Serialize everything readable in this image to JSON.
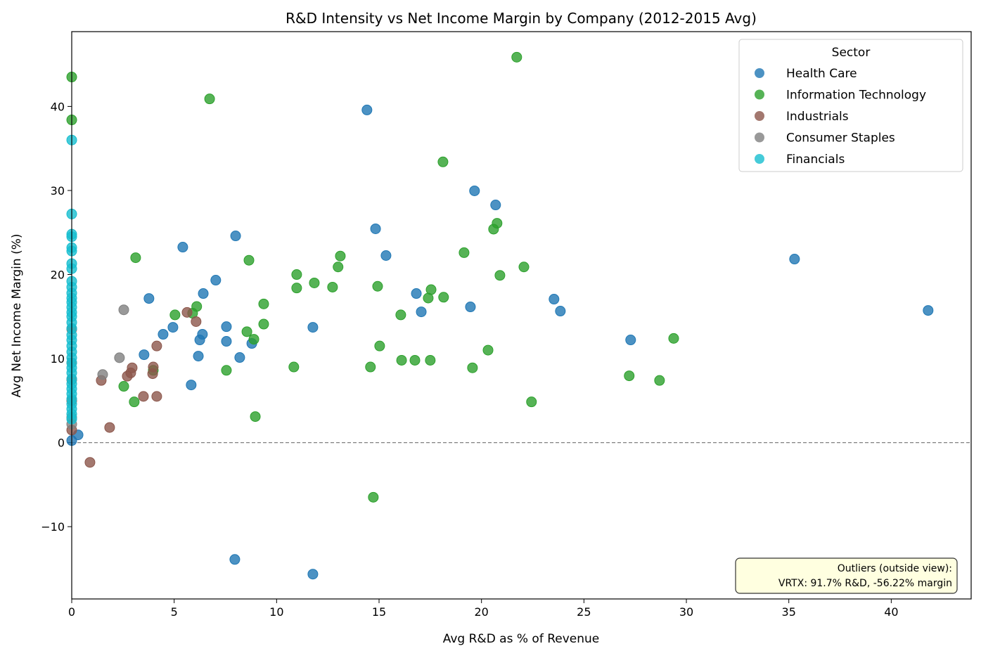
{
  "chart_data": {
    "type": "scatter",
    "title": "R&D Intensity vs Net Income Margin by Company (2012-2015 Avg)",
    "xlabel": "Avg R&D as % of Revenue",
    "ylabel": "Avg Net Income Margin (%)",
    "xlim": [
      0,
      43.9
    ],
    "ylim": [
      -18.6,
      48.9
    ],
    "xticks": [
      0,
      5,
      10,
      15,
      20,
      25,
      30,
      35,
      40
    ],
    "yticks": [
      -10,
      0,
      10,
      20,
      30,
      40
    ],
    "grid": false,
    "reference_line": {
      "y": 0,
      "style": "dashed",
      "color": "#808080"
    },
    "legend": {
      "title": "Sector",
      "placement": "top-right"
    },
    "annotation": {
      "lines": [
        "Outliers (outside view):",
        "VRTX: 91.7% R&D, -56.22% margin"
      ],
      "placement": "bottom-right",
      "background": "#ffffe0"
    },
    "series": [
      {
        "name": "Health Care",
        "color": "#1f77b4",
        "points": [
          [
            14.41,
            39.58
          ],
          [
            19.66,
            29.96
          ],
          [
            20.69,
            28.28
          ],
          [
            14.83,
            25.44
          ],
          [
            8.0,
            24.6
          ],
          [
            5.42,
            23.26
          ],
          [
            15.34,
            22.26
          ],
          [
            35.28,
            21.84
          ],
          [
            7.03,
            19.33
          ],
          [
            6.42,
            17.74
          ],
          [
            16.82,
            17.74
          ],
          [
            3.77,
            17.15
          ],
          [
            23.54,
            17.07
          ],
          [
            19.46,
            16.15
          ],
          [
            17.06,
            15.56
          ],
          [
            23.85,
            15.65
          ],
          [
            41.8,
            15.73
          ],
          [
            4.94,
            13.72
          ],
          [
            7.55,
            13.8
          ],
          [
            11.77,
            13.72
          ],
          [
            4.46,
            12.89
          ],
          [
            6.38,
            12.89
          ],
          [
            6.25,
            12.22
          ],
          [
            7.55,
            12.05
          ],
          [
            27.28,
            12.22
          ],
          [
            8.79,
            11.8
          ],
          [
            3.53,
            10.46
          ],
          [
            6.18,
            10.29
          ],
          [
            8.2,
            10.13
          ],
          [
            5.83,
            6.86
          ],
          [
            0.31,
            0.92
          ],
          [
            0,
            0.25
          ],
          [
            7.96,
            -13.9
          ],
          [
            11.77,
            -15.65
          ]
        ]
      },
      {
        "name": "Information Technology",
        "color": "#2ca02c",
        "points": [
          [
            0,
            43.5
          ],
          [
            0,
            38.4
          ],
          [
            21.72,
            45.86
          ],
          [
            6.73,
            40.9
          ],
          [
            18.12,
            33.4
          ],
          [
            20.76,
            26.1
          ],
          [
            20.59,
            25.4
          ],
          [
            3.12,
            22.0
          ],
          [
            19.15,
            22.6
          ],
          [
            13.11,
            22.2
          ],
          [
            8.65,
            21.7
          ],
          [
            13.0,
            20.9
          ],
          [
            22.07,
            20.9
          ],
          [
            10.98,
            20.0
          ],
          [
            20.9,
            19.9
          ],
          [
            11.84,
            19.0
          ],
          [
            10.98,
            18.4
          ],
          [
            12.73,
            18.5
          ],
          [
            14.93,
            18.6
          ],
          [
            17.54,
            18.2
          ],
          [
            17.4,
            17.2
          ],
          [
            18.15,
            17.3
          ],
          [
            9.37,
            16.5
          ],
          [
            6.1,
            16.2
          ],
          [
            5.04,
            15.2
          ],
          [
            5.9,
            15.4
          ],
          [
            16.06,
            15.2
          ],
          [
            9.37,
            14.1
          ],
          [
            8.55,
            13.2
          ],
          [
            8.89,
            12.3
          ],
          [
            29.38,
            12.4
          ],
          [
            15.03,
            11.5
          ],
          [
            20.32,
            11.0
          ],
          [
            10.84,
            9.0
          ],
          [
            14.58,
            9.0
          ],
          [
            16.1,
            9.8
          ],
          [
            16.75,
            9.8
          ],
          [
            17.5,
            9.8
          ],
          [
            19.56,
            8.9
          ],
          [
            7.55,
            8.6
          ],
          [
            3.98,
            8.6
          ],
          [
            27.21,
            7.95
          ],
          [
            28.69,
            7.4
          ],
          [
            2.54,
            6.7
          ],
          [
            3.05,
            4.85
          ],
          [
            22.44,
            4.85
          ],
          [
            8.96,
            3.1
          ],
          [
            14.72,
            -6.5
          ]
        ]
      },
      {
        "name": "Industrials",
        "color": "#8c564b",
        "points": [
          [
            5.63,
            15.5
          ],
          [
            6.07,
            14.4
          ],
          [
            4.15,
            11.5
          ],
          [
            2.95,
            8.9
          ],
          [
            3.98,
            9.0
          ],
          [
            2.88,
            8.3
          ],
          [
            3.95,
            8.2
          ],
          [
            2.71,
            7.9
          ],
          [
            1.44,
            7.4
          ],
          [
            3.5,
            5.5
          ],
          [
            4.15,
            5.5
          ],
          [
            1.85,
            1.8
          ],
          [
            0.89,
            -2.35
          ],
          [
            0,
            13.5
          ],
          [
            0,
            9.5
          ],
          [
            0,
            7.5
          ],
          [
            0,
            5.0
          ],
          [
            0,
            1.5
          ]
        ]
      },
      {
        "name": "Consumer Staples",
        "color": "#7f7f7f",
        "points": [
          [
            2.54,
            15.8
          ],
          [
            2.33,
            10.1
          ],
          [
            1.51,
            8.1
          ],
          [
            0,
            2.2
          ],
          [
            0,
            3.0
          ]
        ]
      },
      {
        "name": "Financials",
        "color": "#17becf",
        "points": [
          [
            0,
            36.0
          ],
          [
            0,
            27.2
          ],
          [
            0,
            24.8
          ],
          [
            0,
            24.5
          ],
          [
            0,
            23.2
          ],
          [
            0,
            22.8
          ],
          [
            0,
            21.3
          ],
          [
            0,
            20.7
          ],
          [
            0,
            19.2
          ],
          [
            0,
            18.5
          ],
          [
            0,
            17.8
          ],
          [
            0,
            17.2
          ],
          [
            0,
            16.7
          ],
          [
            0,
            16.1
          ],
          [
            0,
            15.5
          ],
          [
            0,
            15.0
          ],
          [
            0,
            14.3
          ],
          [
            0,
            13.6
          ],
          [
            0,
            12.8
          ],
          [
            0,
            12.2
          ],
          [
            0,
            11.5
          ],
          [
            0,
            10.8
          ],
          [
            0,
            10.1
          ],
          [
            0,
            9.5
          ],
          [
            0,
            8.9
          ],
          [
            0,
            8.3
          ],
          [
            0,
            7.6
          ],
          [
            0,
            7.0
          ],
          [
            0,
            6.4
          ],
          [
            0,
            5.8
          ],
          [
            0,
            5.2
          ],
          [
            0,
            4.6
          ],
          [
            0,
            4.0
          ],
          [
            0,
            3.4
          ],
          [
            0,
            2.8
          ]
        ]
      }
    ]
  }
}
